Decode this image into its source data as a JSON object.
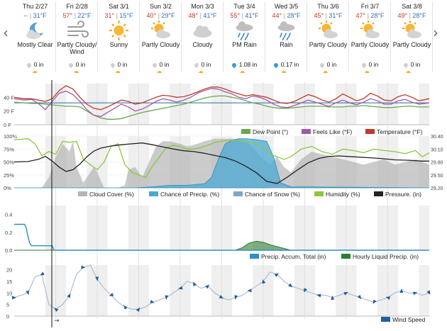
{
  "nav": {
    "prev": "‹",
    "next": "›"
  },
  "days": [
    {
      "name": "Thu 2/27",
      "hi": "--",
      "lo": "31°F",
      "icon": "moon-cloud-icon",
      "cond": [
        "Mostly Clear"
      ],
      "precip": "0 in",
      "drop": "gray"
    },
    {
      "name": "Fri 2/28",
      "hi": "57°",
      "lo": "22°F",
      "icon": "wind-icon",
      "cond": [
        "Partly Cloudy/",
        "Wind"
      ],
      "precip": "0 in",
      "drop": "gray"
    },
    {
      "name": "Sat 3/1",
      "hi": "31°",
      "lo": "15°F",
      "icon": "sun-icon",
      "cond": [
        "Sunny"
      ],
      "precip": "0 in",
      "drop": "gray"
    },
    {
      "name": "Sun 3/2",
      "hi": "40°",
      "lo": "29°F",
      "icon": "partly-cloudy-icon",
      "cond": [
        "Partly Cloudy"
      ],
      "precip": "0 in",
      "drop": "gray"
    },
    {
      "name": "Mon 3/3",
      "hi": "48°",
      "lo": "41°F",
      "icon": "cloud-icon",
      "cond": [
        "Cloudy"
      ],
      "precip": "0 in",
      "drop": "gray"
    },
    {
      "name": "Tue 3/4",
      "hi": "55°",
      "lo": "41°F",
      "icon": "rain-icon",
      "cond": [
        "PM Rain"
      ],
      "precip": "1.08 in",
      "drop": "blue"
    },
    {
      "name": "Wed 3/5",
      "hi": "44°",
      "lo": "28°F",
      "icon": "rain-icon",
      "cond": [
        "Rain"
      ],
      "precip": "0.17 in",
      "drop": "blue"
    },
    {
      "name": "Thu 3/6",
      "hi": "45°",
      "lo": "31°F",
      "icon": "partly-cloudy-icon",
      "cond": [
        "Partly Cloudy"
      ],
      "precip": "0 in",
      "drop": "gray"
    },
    {
      "name": "Fri 3/7",
      "hi": "47°",
      "lo": "28°F",
      "icon": "partly-cloudy-icon",
      "cond": [
        "Partly Cloudy"
      ],
      "precip": "0 in",
      "drop": "gray"
    },
    {
      "name": "Sat 3/8",
      "hi": "49°",
      "lo": "28°F",
      "icon": "partly-cloudy-icon",
      "cond": [
        "Partly Cloudy"
      ],
      "precip": "0 in",
      "drop": "gray"
    }
  ],
  "colors": {
    "dew": "#6aa84f",
    "feels": "#a05aa8",
    "temp": "#c0392b",
    "cloud": "#b5b5b5",
    "chance": "#49a8d4",
    "snow": "#7ea6cc",
    "humidity": "#8dc63f",
    "pressure": "#222222",
    "accum": "#2e8fc4",
    "liquid": "#2e7d32",
    "wind": "#1f5fa0",
    "night": "#efefef",
    "freeze": "#1f6fa8"
  },
  "chart_data": [
    {
      "type": "line",
      "panel": "temperature",
      "yticks": [
        "40 F",
        "20 F",
        "0 F"
      ],
      "ylim": [
        0,
        60
      ],
      "x_range_hours": [
        0,
        240
      ],
      "legend": [
        "Dew Point (°)",
        "Feels Like (°F)",
        "Temperature (°F)"
      ],
      "series": [
        {
          "name": "Dew Point (°)",
          "key": "dew",
          "x": [
            0,
            6,
            10,
            14,
            18,
            22,
            26,
            30,
            34,
            38,
            42,
            46,
            50,
            54,
            58,
            62,
            66,
            70,
            74,
            78,
            82,
            86,
            90,
            94,
            98,
            102,
            106,
            110,
            114,
            118,
            122,
            126,
            130,
            134,
            138,
            142,
            146,
            150,
            154,
            158,
            162,
            166,
            170,
            174,
            178,
            182,
            186,
            190,
            194,
            198,
            202,
            206,
            210,
            214,
            218,
            222,
            226,
            230,
            234,
            240
          ],
          "y": [
            33,
            32,
            31,
            31,
            30,
            29,
            28,
            27,
            27,
            26,
            20,
            14,
            10,
            8,
            8,
            9,
            12,
            15,
            18,
            20,
            22,
            24,
            26,
            28,
            30,
            33,
            36,
            39,
            41,
            42,
            42,
            40,
            38,
            35,
            32,
            30,
            27,
            25,
            24,
            24,
            25,
            26,
            27,
            27,
            27,
            26,
            26,
            26,
            27,
            27,
            28,
            27,
            26,
            25,
            25,
            26,
            27,
            27,
            26,
            26
          ]
        },
        {
          "name": "Feels Like (°F)",
          "key": "feels",
          "x": [
            0,
            6,
            10,
            14,
            18,
            22,
            26,
            30,
            34,
            38,
            42,
            46,
            50,
            54,
            58,
            62,
            66,
            70,
            74,
            78,
            82,
            86,
            90,
            94,
            98,
            102,
            106,
            110,
            114,
            118,
            122,
            126,
            130,
            134,
            138,
            142,
            146,
            150,
            154,
            158,
            162,
            166,
            170,
            174,
            178,
            182,
            186,
            190,
            194,
            198,
            202,
            206,
            210,
            214,
            218,
            222,
            226,
            230,
            234,
            240
          ],
          "y": [
            38,
            36,
            37,
            31,
            22,
            34,
            46,
            49,
            44,
            34,
            22,
            14,
            12,
            18,
            24,
            30,
            26,
            20,
            23,
            28,
            34,
            38,
            36,
            33,
            36,
            40,
            46,
            50,
            53,
            52,
            48,
            45,
            40,
            38,
            42,
            40,
            36,
            30,
            26,
            25,
            28,
            32,
            36,
            33,
            30,
            27,
            32,
            36,
            32,
            29,
            33,
            38,
            35,
            30,
            30,
            35,
            37,
            33,
            30,
            32
          ]
        },
        {
          "name": "Temperature (°F)",
          "key": "temp",
          "x": [
            0,
            6,
            10,
            14,
            18,
            22,
            26,
            30,
            34,
            38,
            42,
            46,
            50,
            54,
            58,
            62,
            66,
            70,
            74,
            78,
            82,
            86,
            90,
            94,
            98,
            102,
            106,
            110,
            114,
            118,
            122,
            126,
            130,
            134,
            138,
            142,
            146,
            150,
            154,
            158,
            162,
            166,
            170,
            174,
            178,
            182,
            186,
            190,
            194,
            198,
            202,
            206,
            210,
            214,
            218,
            222,
            226,
            230,
            234,
            240
          ],
          "y": [
            40,
            38,
            38,
            36,
            34,
            38,
            50,
            57,
            52,
            40,
            30,
            24,
            22,
            26,
            31,
            36,
            34,
            30,
            32,
            36,
            40,
            43,
            42,
            40,
            41,
            44,
            48,
            52,
            55,
            55,
            52,
            48,
            45,
            42,
            44,
            42,
            40,
            36,
            32,
            31,
            34,
            39,
            44,
            41,
            36,
            33,
            38,
            45,
            40,
            35,
            38,
            46,
            42,
            36,
            35,
            41,
            44,
            40,
            35,
            38
          ]
        }
      ]
    },
    {
      "type": "area",
      "panel": "sky",
      "yticks_left": [
        "100%",
        "75%",
        "50%",
        "25%",
        "0%"
      ],
      "yticks_right": [
        "30.40",
        "30.10",
        "29.80",
        "29.50",
        "29.20"
      ],
      "ylim_left": [
        0,
        100
      ],
      "ylim_right": [
        29.2,
        30.4
      ],
      "x_range_hours": [
        0,
        240
      ],
      "legend": [
        "Cloud Cover (%)",
        "Chance of Precip. (%)",
        "Chance of Snow (%)",
        "Humidity (%)",
        "Pressure. (in)"
      ],
      "series": [
        {
          "name": "Cloud Cover (%)",
          "key": "cloud",
          "x": [
            0,
            10,
            16,
            20,
            24,
            28,
            32,
            34,
            36,
            40,
            44,
            46,
            48,
            52,
            56,
            60,
            64,
            66,
            70,
            74,
            78,
            82,
            86,
            90,
            96,
            100,
            106,
            110,
            116,
            120,
            124,
            128,
            132,
            136,
            140,
            144,
            148,
            152,
            156,
            160,
            166,
            172,
            178,
            184,
            190,
            196,
            202,
            208,
            214,
            220,
            226,
            232,
            240
          ],
          "y": [
            0,
            0,
            0,
            20,
            60,
            85,
            70,
            90,
            40,
            10,
            30,
            40,
            30,
            0,
            0,
            0,
            5,
            35,
            40,
            20,
            50,
            80,
            90,
            90,
            85,
            80,
            85,
            90,
            95,
            95,
            95,
            95,
            92,
            85,
            70,
            55,
            45,
            60,
            40,
            30,
            55,
            70,
            65,
            60,
            55,
            50,
            45,
            50,
            55,
            45,
            50,
            55,
            45
          ]
        },
        {
          "name": "Chance of Precip. (%)",
          "key": "chance",
          "x": [
            0,
            70,
            80,
            90,
            100,
            110,
            114,
            118,
            122,
            126,
            130,
            134,
            138,
            142,
            146,
            150,
            154,
            160,
            240
          ],
          "y": [
            0,
            0,
            2,
            5,
            5,
            8,
            20,
            55,
            85,
            92,
            95,
            95,
            94,
            92,
            90,
            60,
            10,
            2,
            0
          ]
        },
        {
          "name": "Chance of Snow (%)",
          "key": "snow",
          "x": [
            0,
            146,
            150,
            154,
            158,
            240
          ],
          "y": [
            0,
            0,
            6,
            4,
            0,
            0
          ]
        },
        {
          "name": "Humidity (%)",
          "key": "humidity",
          "x": [
            0,
            8,
            12,
            16,
            20,
            24,
            28,
            32,
            36,
            40,
            44,
            48,
            52,
            56,
            60,
            64,
            68,
            72,
            76,
            80,
            84,
            88,
            92,
            96,
            100,
            104,
            108,
            112,
            116,
            120,
            124,
            128,
            132,
            136,
            140,
            144,
            148,
            152,
            156,
            160,
            166,
            172,
            178,
            184,
            190,
            196,
            202,
            208,
            214,
            220,
            226,
            232,
            236,
            240
          ],
          "y": [
            93,
            95,
            85,
            62,
            70,
            65,
            90,
            88,
            90,
            55,
            45,
            35,
            50,
            80,
            85,
            45,
            30,
            25,
            20,
            42,
            60,
            78,
            82,
            80,
            75,
            75,
            78,
            82,
            88,
            90,
            92,
            92,
            90,
            88,
            85,
            75,
            65,
            60,
            55,
            60,
            75,
            80,
            70,
            65,
            75,
            72,
            68,
            75,
            72,
            70,
            66,
            72,
            60,
            68
          ]
        },
        {
          "name": "Pressure. (in)",
          "key": "pressure",
          "x": [
            0,
            8,
            14,
            18,
            22,
            26,
            30,
            34,
            38,
            42,
            46,
            50,
            56,
            62,
            68,
            74,
            80,
            86,
            92,
            98,
            104,
            110,
            116,
            122,
            128,
            134,
            140,
            146,
            152,
            158,
            164,
            170,
            176,
            182,
            188,
            196,
            204,
            212,
            220,
            228,
            236,
            240
          ],
          "y": [
            29.8,
            29.81,
            29.86,
            29.93,
            29.82,
            29.68,
            29.58,
            29.62,
            29.75,
            29.92,
            30.05,
            30.12,
            30.17,
            30.2,
            30.22,
            30.24,
            30.2,
            30.15,
            30.1,
            30.06,
            30.04,
            30.0,
            29.95,
            29.9,
            29.82,
            29.7,
            29.55,
            29.35,
            29.3,
            29.45,
            29.62,
            29.78,
            29.88,
            29.93,
            29.94,
            29.92,
            29.9,
            29.88,
            29.85,
            29.84,
            29.82,
            29.82
          ]
        }
      ]
    },
    {
      "type": "area",
      "panel": "precip",
      "yticks": [
        "0.4",
        "0.2",
        "0.0"
      ],
      "ylim": [
        0,
        0.5
      ],
      "x_range_hours": [
        0,
        240
      ],
      "legend": [
        "Precip. Accum. Total (in)",
        "Hourly Liquid Precip. (in)"
      ],
      "series": [
        {
          "name": "Precip. Accum. Total (in)",
          "key": "accum",
          "x": [
            0,
            6,
            7,
            8,
            9,
            10,
            22,
            23,
            240
          ],
          "y": [
            0.29,
            0.29,
            0.25,
            0.15,
            0.08,
            0.05,
            0.05,
            0.0,
            0.0
          ]
        },
        {
          "name": "Hourly Liquid Precip. (in)",
          "key": "liquid",
          "x": [
            0,
            128,
            132,
            136,
            140,
            144,
            148,
            152,
            156,
            160,
            240
          ],
          "y": [
            0,
            0,
            0.03,
            0.08,
            0.1,
            0.09,
            0.06,
            0.04,
            0.02,
            0,
            0
          ]
        }
      ]
    },
    {
      "type": "line",
      "panel": "wind",
      "yticks": [
        "20",
        "15",
        "10",
        "5",
        "0"
      ],
      "ylim": [
        0,
        22
      ],
      "x_range_hours": [
        0,
        240
      ],
      "legend": [
        "Wind Speed"
      ],
      "series": [
        {
          "name": "Wind Speed",
          "key": "wind",
          "x": [
            0,
            4,
            8,
            12,
            16,
            20,
            24,
            28,
            32,
            36,
            40,
            44,
            48,
            52,
            56,
            60,
            64,
            68,
            72,
            76,
            80,
            84,
            88,
            92,
            96,
            100,
            104,
            108,
            112,
            116,
            120,
            124,
            128,
            132,
            136,
            140,
            144,
            148,
            152,
            156,
            160,
            164,
            168,
            172,
            176,
            180,
            184,
            188,
            192,
            196,
            200,
            204,
            208,
            212,
            216,
            220,
            224,
            228,
            232,
            236,
            240
          ],
          "y": [
            8,
            9,
            10,
            17,
            18,
            5,
            3,
            5,
            9,
            18,
            21,
            22,
            16,
            12,
            9,
            6,
            4,
            3,
            3,
            4,
            6,
            7,
            8,
            10,
            12,
            15,
            14,
            12,
            13,
            10,
            8,
            7,
            8,
            9,
            11,
            13,
            15,
            19,
            18,
            15,
            13,
            12,
            11,
            10,
            9,
            9,
            8,
            9,
            10,
            9,
            8,
            7,
            6,
            7,
            8,
            10,
            11,
            10,
            10,
            9,
            10
          ]
        }
      ]
    }
  ]
}
